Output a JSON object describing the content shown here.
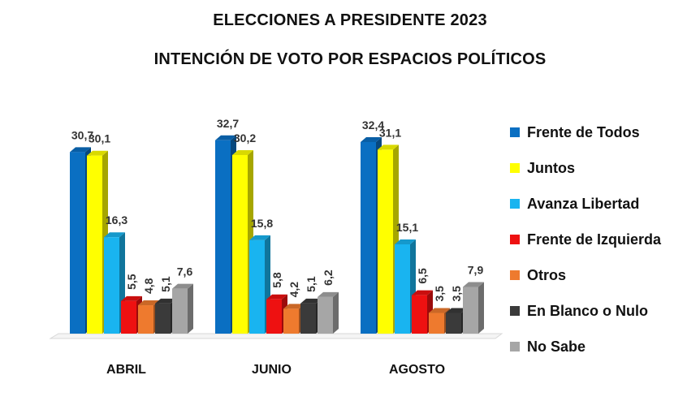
{
  "chart_data": {
    "type": "bar",
    "title": "ELECCIONES A PRESIDENTE 2023",
    "subtitle": "INTENCIÓN DE VOTO POR ESPACIOS POLÍTICOS",
    "categories": [
      "ABRIL",
      "JUNIO",
      "AGOSTO"
    ],
    "series": [
      {
        "name": "Frente de Todos",
        "color": "#0a6fc2",
        "values": [
          30.7,
          32.7,
          32.4
        ],
        "labels": [
          "30,7",
          "32,7",
          "32,4"
        ]
      },
      {
        "name": "Juntos",
        "color": "#ffff00",
        "values": [
          30.1,
          30.2,
          31.1
        ],
        "labels": [
          "30,1",
          "30,2",
          "31,1"
        ]
      },
      {
        "name": "Avanza Libertad",
        "color": "#19b4f0",
        "values": [
          16.3,
          15.8,
          15.1
        ],
        "labels": [
          "16,3",
          "15,8",
          "15,1"
        ]
      },
      {
        "name": "Frente de Izquierda",
        "color": "#ee1111",
        "values": [
          5.5,
          5.8,
          6.5
        ],
        "labels": [
          "5,5",
          "5,8",
          "6,5"
        ]
      },
      {
        "name": "Otros",
        "color": "#ee7a2e",
        "values": [
          4.8,
          4.2,
          3.5
        ],
        "labels": [
          "4,8",
          "4,2",
          "3,5"
        ]
      },
      {
        "name": "En Blanco o Nulo",
        "color": "#3a3a3a",
        "values": [
          5.1,
          5.1,
          3.5
        ],
        "labels": [
          "5,1",
          "5,1",
          "3,5"
        ]
      },
      {
        "name": "No Sabe",
        "color": "#a6a6a6",
        "values": [
          7.6,
          6.2,
          7.9
        ],
        "labels": [
          "7,6",
          "6,2",
          "7,9"
        ]
      }
    ],
    "ylim": [
      0,
      35
    ],
    "legend": "right",
    "grid": false,
    "style": "3d"
  }
}
